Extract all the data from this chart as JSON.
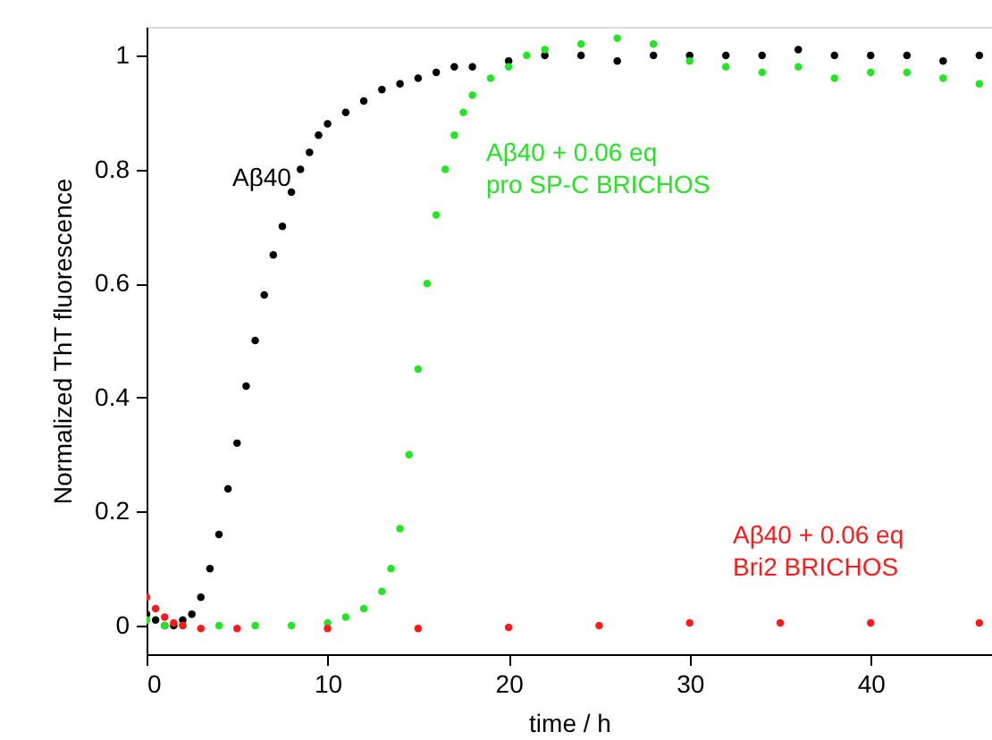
{
  "chart_data": {
    "type": "scatter",
    "xlabel": "time / h",
    "ylabel": "Normalized ThT fluorescence",
    "xlim": [
      0,
      46.7
    ],
    "ylim": [
      -0.05,
      1.05
    ],
    "xticks": [
      0,
      10,
      20,
      30,
      40
    ],
    "yticks": [
      0,
      0.2,
      0.4,
      0.6,
      0.8,
      1
    ],
    "grid": false,
    "legend": false,
    "marker": "circle",
    "series": [
      {
        "name": "Aβ40",
        "color": "#000000",
        "x": [
          0,
          0.5,
          1,
          1.5,
          2,
          2.5,
          3,
          3.5,
          4,
          4.5,
          5,
          5.5,
          6,
          6.5,
          7,
          7.5,
          8,
          8.5,
          9,
          9.5,
          10,
          11,
          12,
          13,
          14,
          15,
          16,
          17,
          18,
          20,
          22,
          24,
          26,
          28,
          30,
          32,
          34,
          36,
          38,
          40,
          42,
          44,
          46
        ],
        "values": [
          0.02,
          0.01,
          0.0,
          0.0,
          0.01,
          0.02,
          0.05,
          0.1,
          0.16,
          0.24,
          0.32,
          0.42,
          0.5,
          0.58,
          0.65,
          0.7,
          0.76,
          0.8,
          0.83,
          0.86,
          0.88,
          0.9,
          0.92,
          0.94,
          0.95,
          0.96,
          0.97,
          0.98,
          0.98,
          0.99,
          1.0,
          1.0,
          0.99,
          1.0,
          1.0,
          1.0,
          1.0,
          1.01,
          1.0,
          1.0,
          1.0,
          0.99,
          1.0
        ]
      },
      {
        "name": "Aβ40 + 0.06 eq\npro SP-C BRICHOS",
        "color": "#22e622",
        "x": [
          0,
          1,
          2,
          4,
          6,
          8,
          10,
          11,
          12,
          13,
          13.5,
          14,
          14.5,
          15,
          15.5,
          16,
          16.5,
          17,
          17.5,
          18,
          19,
          20,
          21,
          22,
          24,
          26,
          28,
          30,
          32,
          34,
          36,
          38,
          40,
          42,
          44,
          46
        ],
        "values": [
          0.01,
          0.0,
          0.0,
          0.0,
          0.0,
          0.0,
          0.005,
          0.015,
          0.03,
          0.06,
          0.1,
          0.17,
          0.3,
          0.45,
          0.6,
          0.72,
          0.8,
          0.86,
          0.9,
          0.93,
          0.96,
          0.98,
          1.0,
          1.01,
          1.02,
          1.03,
          1.02,
          0.99,
          0.98,
          0.97,
          0.98,
          0.96,
          0.97,
          0.97,
          0.96,
          0.95
        ]
      },
      {
        "name": "Aβ40 + 0.06 eq\nBri2 BRICHOS",
        "color": "#ff1a1a",
        "x": [
          0,
          0.5,
          1,
          1.5,
          2,
          3,
          5,
          10,
          15,
          20,
          25,
          30,
          35,
          40,
          46
        ],
        "values": [
          0.05,
          0.03,
          0.015,
          0.005,
          0.0,
          -0.005,
          -0.005,
          -0.005,
          -0.005,
          -0.003,
          0.0,
          0.005,
          0.005,
          0.005,
          0.005
        ]
      }
    ]
  }
}
